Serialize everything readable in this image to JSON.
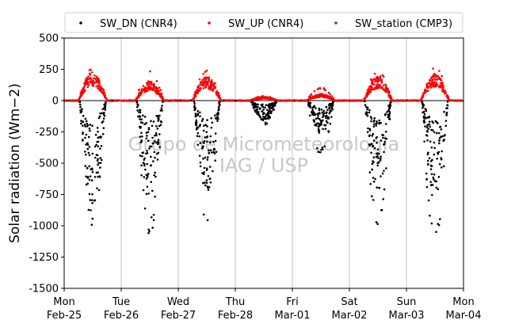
{
  "chart_data": {
    "type": "scatter",
    "ylabel": "Solar radiation (Wm−2)",
    "ylim": [
      -1500,
      500
    ],
    "yticks": [
      500,
      250,
      0,
      -250,
      -500,
      -750,
      -1000,
      -1250,
      -1500
    ],
    "xlim": [
      "2019-02-25",
      "2019-03-04"
    ],
    "xticks": [
      {
        "day": "Mon",
        "date": "Feb-25"
      },
      {
        "day": "Tue",
        "date": "Feb-26"
      },
      {
        "day": "Wed",
        "date": "Feb-27"
      },
      {
        "day": "Thu",
        "date": "Feb-28"
      },
      {
        "day": "Fri",
        "date": "Mar-01"
      },
      {
        "day": "Sat",
        "date": "Mar-02"
      },
      {
        "day": "Sun",
        "date": "Mar-03"
      },
      {
        "day": "Mon",
        "date": "Mar-04"
      }
    ],
    "grid": "vertical",
    "legend_position": "top",
    "watermark": [
      "Grupo de Micrometeorologia",
      "IAG / USP"
    ],
    "series": [
      {
        "name": "SW_DN (CNR4)",
        "color": "#000000",
        "daily_minimum": [
          -1050,
          -1090,
          -990,
          -200,
          -440,
          -1100,
          -1220
        ],
        "daily_noon_typical": [
          -650,
          -600,
          -550,
          -120,
          -200,
          -550,
          -600
        ]
      },
      {
        "name": "SW_UP (CNR4)",
        "color": "#ff0000",
        "daily_maximum": [
          270,
          240,
          250,
          40,
          110,
          240,
          300
        ],
        "daily_noon_typical": [
          190,
          130,
          160,
          25,
          45,
          160,
          180
        ]
      },
      {
        "name": "SW_station (CMP3)",
        "color": "#008000",
        "daily_maximum": [
          0,
          0,
          0,
          0,
          0,
          0,
          0
        ]
      }
    ]
  }
}
